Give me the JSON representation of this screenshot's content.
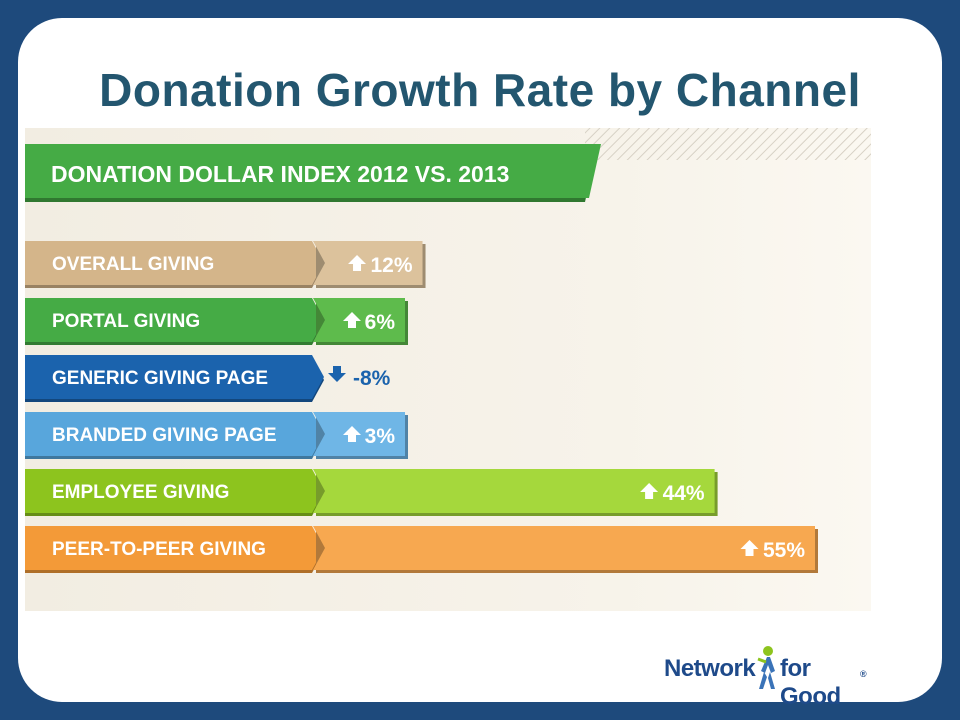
{
  "slide": {
    "title": "Donation Growth Rate by Channel"
  },
  "logo": {
    "part1": "Network",
    "part2": "for Good",
    "mark": "®"
  },
  "chart_data": {
    "type": "bar",
    "orientation": "horizontal",
    "title": "DONATION DOLLAR INDEX 2012 VS. 2013",
    "categories": [
      "OVERALL GIVING",
      "PORTAL GIVING",
      "GENERIC GIVING PAGE",
      "BRANDED GIVING PAGE",
      "EMPLOYEE GIVING",
      "PEER-TO-PEER GIVING"
    ],
    "values": [
      12,
      6,
      -8,
      3,
      44,
      55
    ],
    "value_labels": [
      "12%",
      "6%",
      "-8%",
      "3%",
      "44%",
      "55%"
    ],
    "unit": "%",
    "colors": [
      "#d4b58a",
      "#45ab45",
      "#1b63ad",
      "#58a6dc",
      "#8dc41e",
      "#f39a38"
    ],
    "bar_colors": [
      "#dcc29c",
      "#5ebb4c",
      "#1b63ad",
      "#6fb6e6",
      "#a5d83c",
      "#f7a850"
    ],
    "title_color": "#45ab45",
    "up_color": "#ffffff",
    "down_color": "#1b63ad",
    "grid": false
  }
}
